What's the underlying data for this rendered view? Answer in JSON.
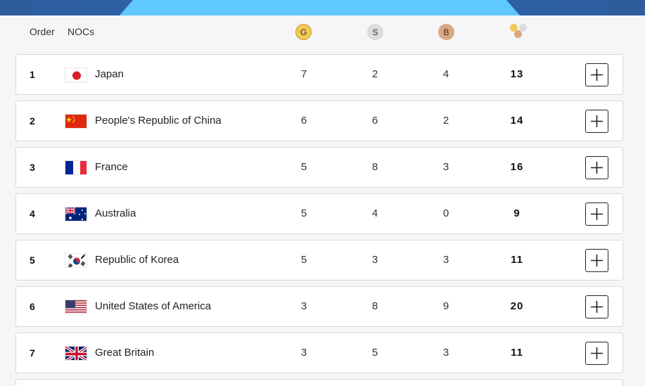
{
  "header": {
    "order_label": "Order",
    "nocs_label": "NOCs",
    "gold_label": "G",
    "silver_label": "S",
    "bronze_label": "B",
    "total_icon": "medals-total-icon"
  },
  "colors": {
    "gold": "#f4c95a",
    "silver": "#dcdcdc",
    "bronze": "#d9a880",
    "banner_blue": "#2a66b0",
    "banner_light": "#5ec8ff"
  },
  "rows": [
    {
      "rank": "1",
      "country": "Japan",
      "flag": "flag-japan-icon",
      "gold": "7",
      "silver": "2",
      "bronze": "4",
      "total": "13"
    },
    {
      "rank": "2",
      "country": "People's Republic of China",
      "flag": "flag-china-icon",
      "gold": "6",
      "silver": "6",
      "bronze": "2",
      "total": "14"
    },
    {
      "rank": "3",
      "country": "France",
      "flag": "flag-france-icon",
      "gold": "5",
      "silver": "8",
      "bronze": "3",
      "total": "16"
    },
    {
      "rank": "4",
      "country": "Australia",
      "flag": "flag-australia-icon",
      "gold": "5",
      "silver": "4",
      "bronze": "0",
      "total": "9"
    },
    {
      "rank": "5",
      "country": "Republic of Korea",
      "flag": "flag-korea-icon",
      "gold": "5",
      "silver": "3",
      "bronze": "3",
      "total": "11"
    },
    {
      "rank": "6",
      "country": "United States of America",
      "flag": "flag-usa-icon",
      "gold": "3",
      "silver": "8",
      "bronze": "9",
      "total": "20"
    },
    {
      "rank": "7",
      "country": "Great Britain",
      "flag": "flag-great-britain-icon",
      "gold": "3",
      "silver": "5",
      "bronze": "3",
      "total": "11"
    }
  ]
}
